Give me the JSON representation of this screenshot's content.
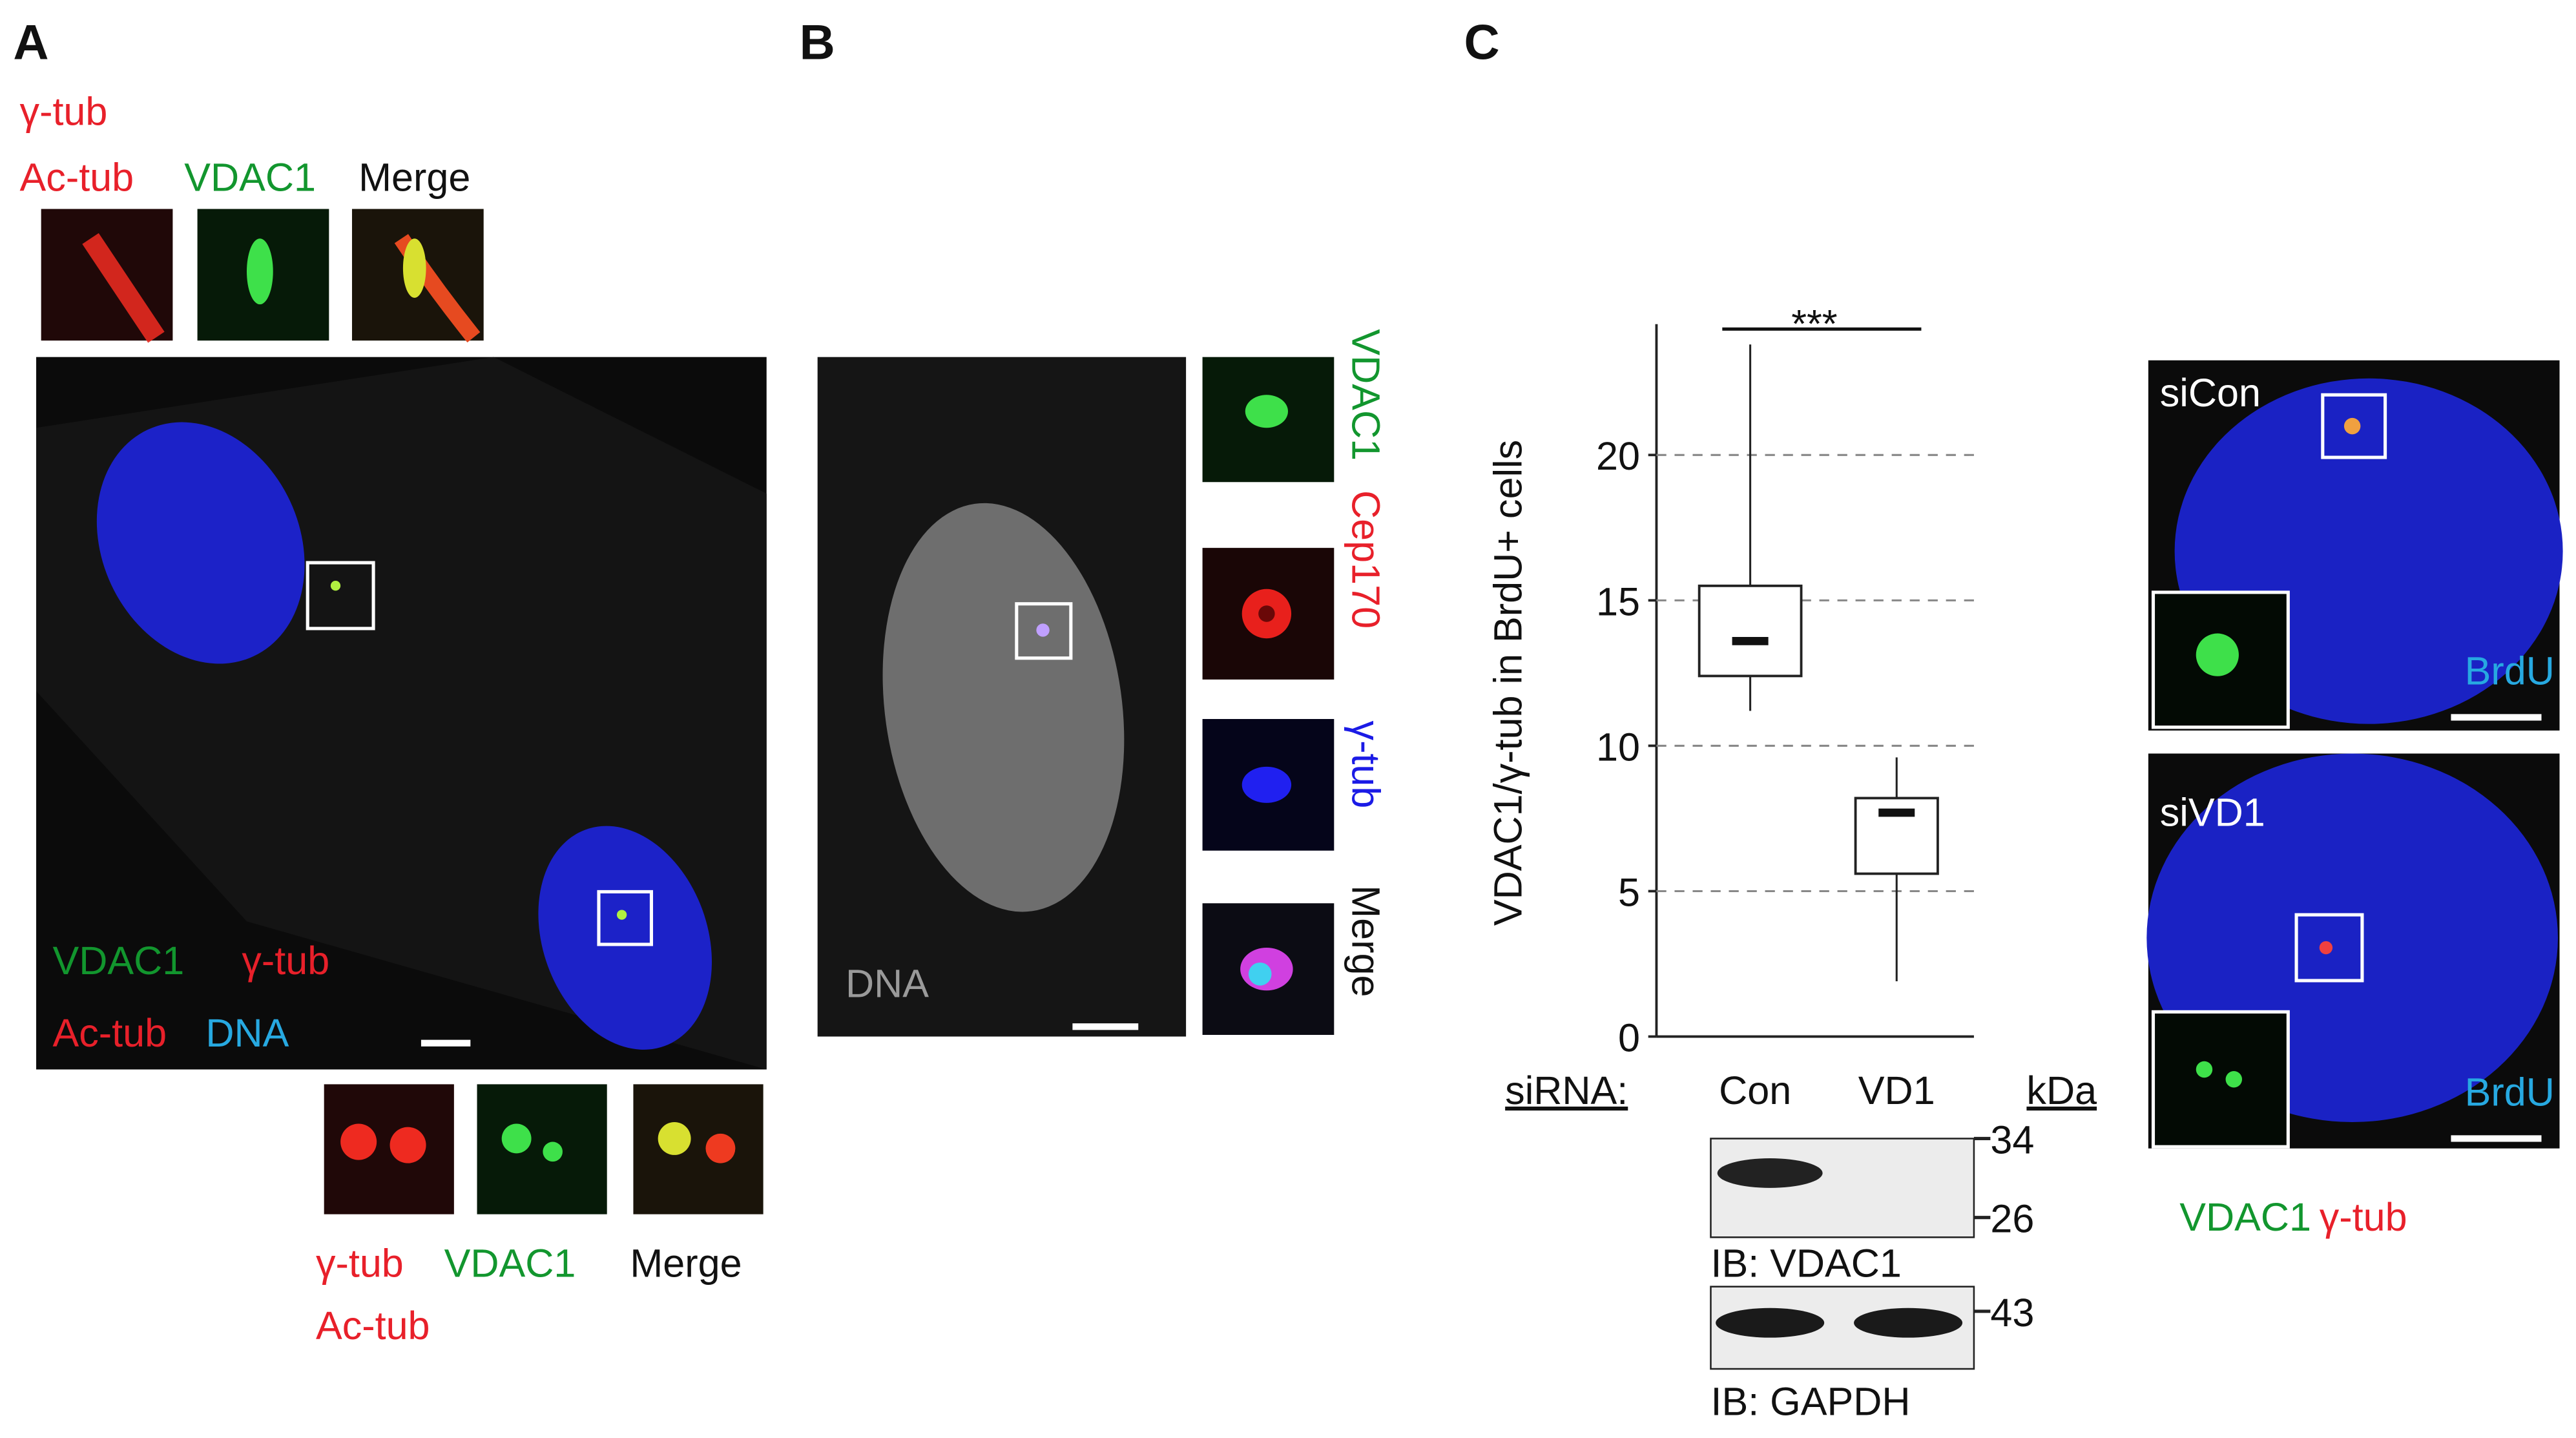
{
  "panel_a": {
    "label": "A",
    "top_labels": {
      "gamma_tub": "γ-tub",
      "ac_tub": "Ac-tub",
      "vdac1": "VDAC1",
      "merge": "Merge"
    },
    "main_labels": {
      "vdac1": "VDAC1",
      "gamma_tub": "γ-tub",
      "ac_tub": "Ac-tub",
      "dna": "DNA"
    },
    "bottom_labels": {
      "gamma_tub": "γ-tub",
      "vdac1": "VDAC1",
      "merge": "Merge",
      "ac_tub": "Ac-tub"
    }
  },
  "panel_b": {
    "label": "B",
    "dna": "DNA",
    "side_labels": {
      "vdac1": "VDAC1",
      "cep170": "Cep170",
      "gamma_tub": "γ-tub",
      "merge": "Merge"
    }
  },
  "panel_c": {
    "label": "C",
    "blot": {
      "kda": "kDa",
      "markers": [
        34,
        26,
        43
      ],
      "ib_vdac1": "IB: VDAC1",
      "ib_gapdh": "IB: GAPDH"
    },
    "images": {
      "sicon": "siCon",
      "sivd1": "siVD1",
      "brdu_1": "BrdU",
      "brdu_2": "BrdU"
    },
    "legend": {
      "vdac1": "VDAC1",
      "gamma_tub": "γ-tub"
    }
  },
  "chart_data": {
    "type": "box",
    "y_label": "VDAC1/γ-tub in BrdU+ cells",
    "x_label": "siRNA:",
    "categories": [
      "Con",
      "VD1"
    ],
    "boxes": [
      {
        "min": 11.2,
        "q1": 12.4,
        "median": 13.6,
        "q3": 15.5,
        "max": 23.8
      },
      {
        "min": 1.9,
        "q1": 5.6,
        "median": 7.7,
        "q3": 8.2,
        "max": 9.6
      }
    ],
    "ylim": [
      0,
      24.5
    ],
    "yticks": [
      0,
      5,
      10,
      15,
      20
    ],
    "grid": true,
    "annotation": "***"
  }
}
